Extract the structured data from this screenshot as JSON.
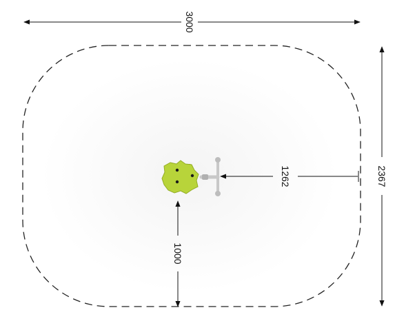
{
  "dimensions": {
    "total_width": "3000",
    "total_depth": "2367",
    "equipment_to_edge": "1262",
    "equipment_to_bottom": "1000"
  },
  "colors": {
    "line": "#111111",
    "safety_zone": "#222222",
    "equipment_head": "#b8d43a",
    "equipment_head_shadow": "#93ad25",
    "equipment_handle": "#c8c8c8",
    "equipment_rust": "#c99a44",
    "ground_fade": "#f3f3f3"
  },
  "icons": {
    "equipment": "spring-rider-icon"
  }
}
